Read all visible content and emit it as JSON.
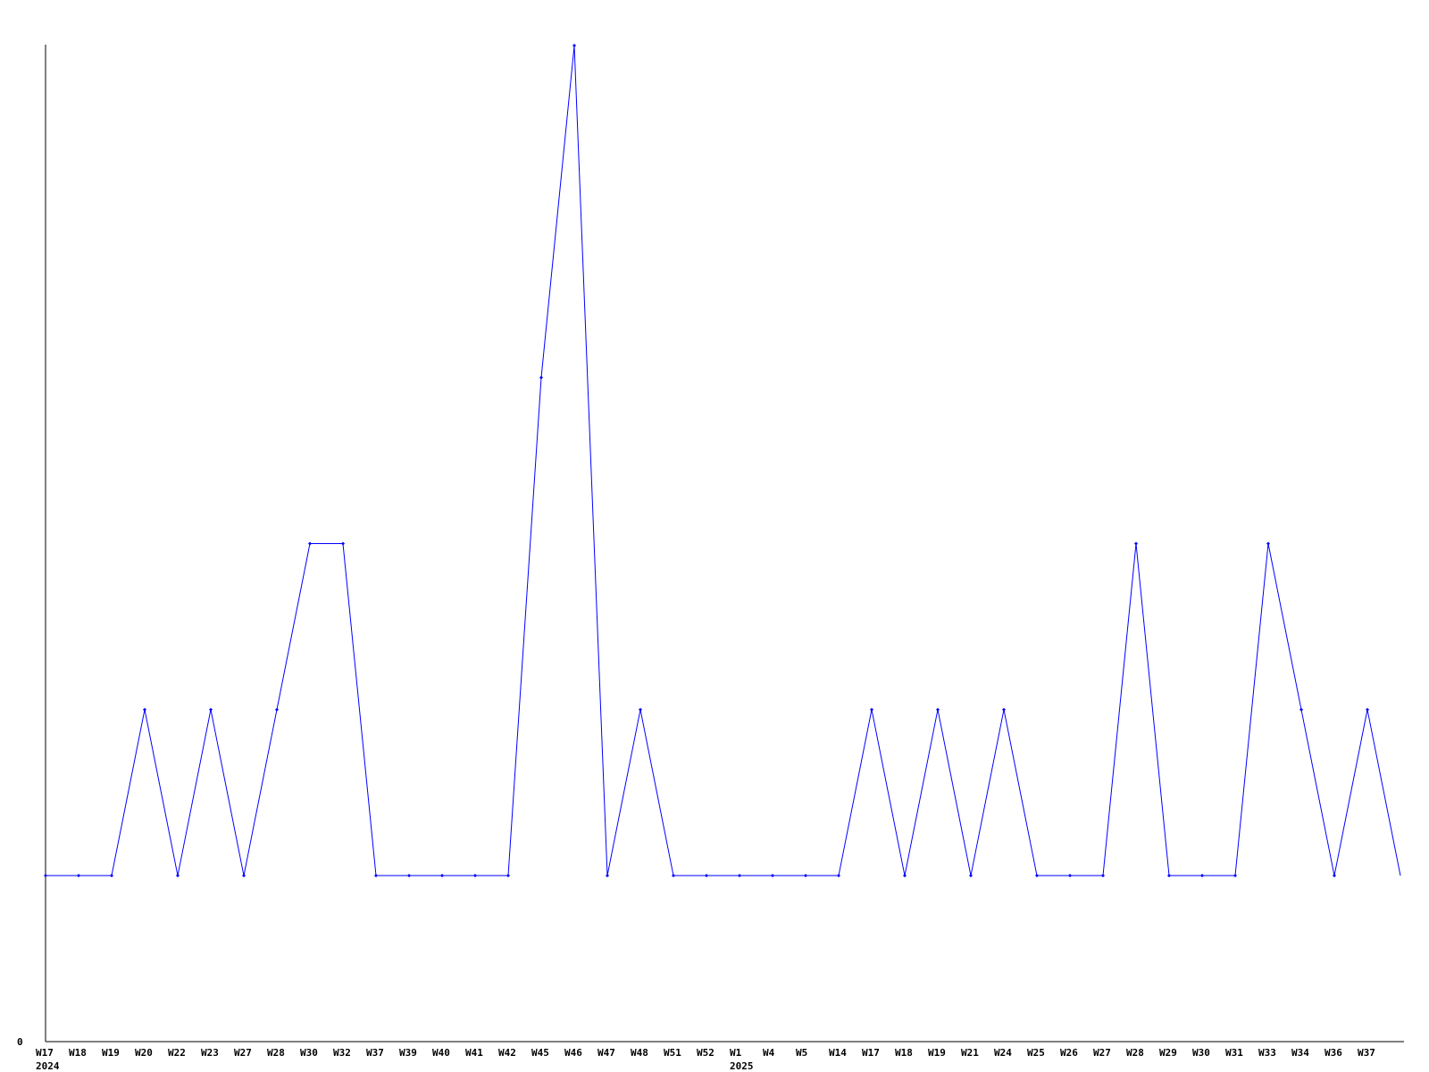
{
  "chart_data": {
    "type": "line",
    "title": "",
    "xlabel": "",
    "ylabel": "",
    "ylim": [
      0,
      6
    ],
    "y_tick_labels": [
      "0"
    ],
    "grid": false,
    "line_color": "#0000ff",
    "axis_color": "#000000",
    "categories": [
      "W17",
      "W18",
      "W19",
      "W20",
      "W22",
      "W23",
      "W27",
      "W28",
      "W30",
      "W32",
      "W37",
      "W39",
      "W40",
      "W41",
      "W42",
      "W45",
      "W46",
      "W47",
      "W48",
      "W51",
      "W52",
      "W1",
      "W4",
      "W5",
      "W14",
      "W17",
      "W18",
      "W19",
      "W21",
      "W24",
      "W25",
      "W26",
      "W27",
      "W28",
      "W29",
      "W30",
      "W31",
      "W33",
      "W34",
      "W36",
      "W37",
      ""
    ],
    "year_labels": [
      {
        "index": 0,
        "label": "2024"
      },
      {
        "index": 21,
        "label": "2025"
      }
    ],
    "series": [
      {
        "values": [
          1,
          1,
          1,
          2,
          1,
          2,
          1,
          2,
          3,
          3,
          1,
          1,
          1,
          1,
          1,
          4,
          6,
          1,
          2,
          1,
          1,
          1,
          1,
          1,
          1,
          2,
          1,
          2,
          1,
          2,
          1,
          1,
          1,
          3,
          1,
          1,
          1,
          3,
          2,
          1,
          2,
          1
        ]
      }
    ]
  }
}
